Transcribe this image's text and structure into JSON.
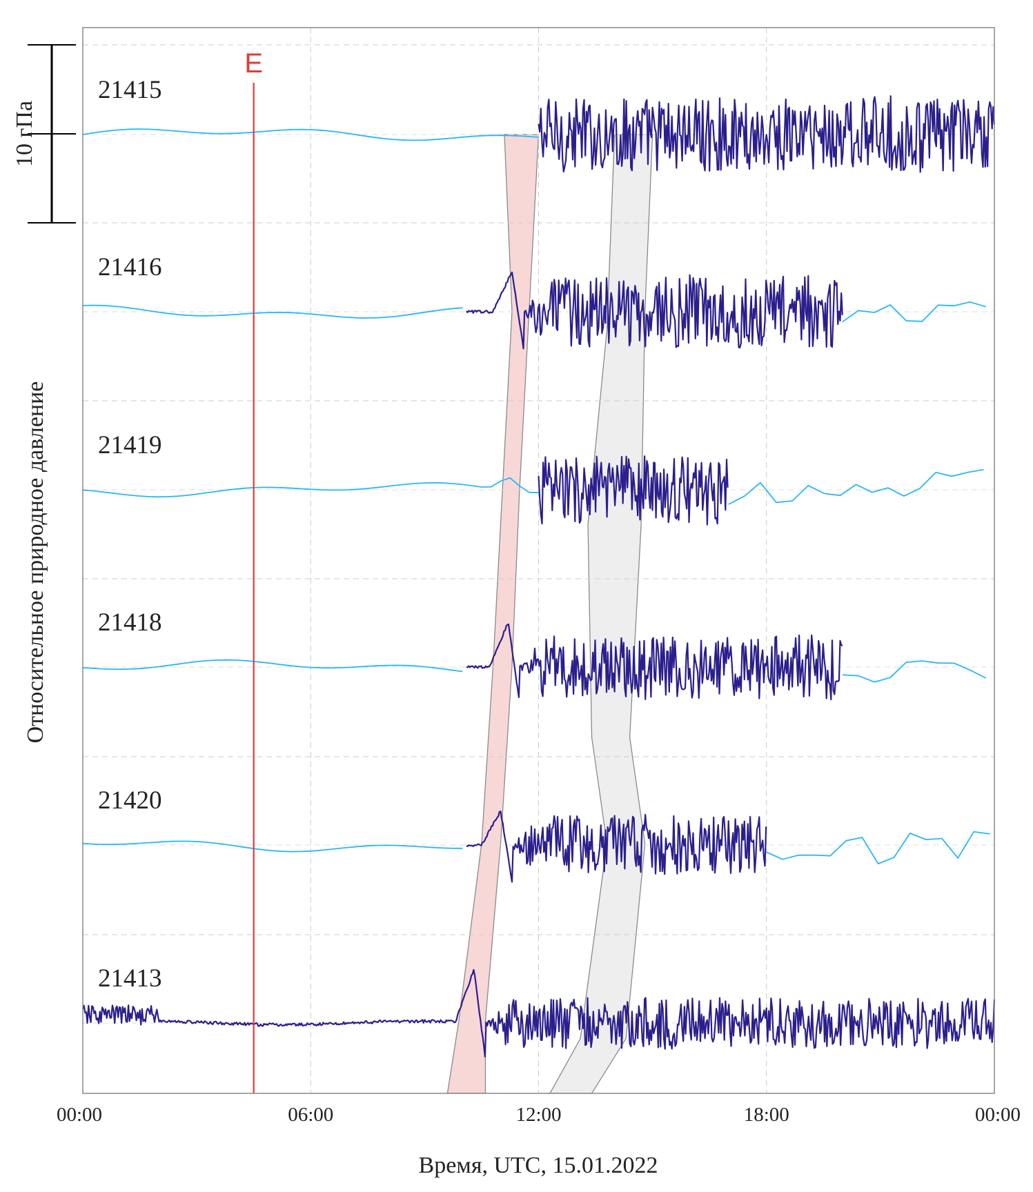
{
  "chart_data": {
    "type": "line",
    "title": "",
    "xlabel": "Время, UTC, 15.01.2022",
    "ylabel": "Относительное природное давление",
    "x_unit": "hours",
    "xlim": [
      0,
      24
    ],
    "x_ticks": [
      {
        "value": 0,
        "label": "00:00"
      },
      {
        "value": 6,
        "label": "06:00"
      },
      {
        "value": 12,
        "label": "12:00"
      },
      {
        "value": 18,
        "label": "18:00"
      },
      {
        "value": 24,
        "label": "00:00"
      }
    ],
    "scale_bar": {
      "label": "10 гПа",
      "value": 10
    },
    "event": {
      "label": "E",
      "x": 4.5,
      "color": "#e53935"
    },
    "grid": true,
    "colors": {
      "low_rate": "#29b6f6",
      "high_rate": "#2a1f8c",
      "band_red": "#f8d7d7",
      "band_gray": "#eeeeee"
    },
    "series": [
      {
        "name": "21415",
        "hi_start": 12.0,
        "hi_end": 24.0,
        "amp_hi": 4.2
      },
      {
        "name": "21416",
        "hi_start": 10.1,
        "hi_end": 20.0,
        "amp_hi": 4.0,
        "spike_t": 11.3,
        "spike_amp": 4.5
      },
      {
        "name": "21419",
        "hi_start": 12.0,
        "hi_end": 17.0,
        "amp_hi": 3.8,
        "bump_t": 11.2
      },
      {
        "name": "21418",
        "hi_start": 10.1,
        "hi_end": 20.0,
        "amp_hi": 3.5,
        "spike_t": 11.2,
        "spike_amp": 5.0
      },
      {
        "name": "21420",
        "hi_start": 10.1,
        "hi_end": 18.0,
        "amp_hi": 3.3,
        "spike_t": 11.0,
        "spike_amp": 3.8
      },
      {
        "name": "21413",
        "hi_start": 0.0,
        "hi_end": 24.0,
        "amp_hi": 2.8,
        "spike_t": 10.3,
        "spike_amp": 6.0
      }
    ],
    "bands": [
      {
        "name": "red-band",
        "color": "#f8d7d7",
        "left": [
          [
            11.1,
            0
          ],
          [
            11.3,
            1
          ],
          [
            10.8,
            3
          ],
          [
            10.5,
            4
          ],
          [
            9.9,
            5
          ],
          [
            9.6,
            5.6
          ]
        ],
        "right": [
          [
            12.0,
            0
          ],
          [
            11.5,
            2
          ],
          [
            11.3,
            3
          ],
          [
            11.0,
            4
          ],
          [
            10.6,
            5
          ],
          [
            10.6,
            5.6
          ]
        ]
      },
      {
        "name": "gray-band",
        "color": "#eeeeee",
        "left": [
          [
            14.0,
            0
          ],
          [
            13.8,
            1.1
          ],
          [
            13.3,
            2.2
          ],
          [
            13.4,
            3.4
          ],
          [
            13.8,
            4.0
          ],
          [
            13.1,
            5.1
          ],
          [
            12.3,
            5.5
          ],
          [
            12.2,
            5.9
          ]
        ],
        "right": [
          [
            15.0,
            0
          ],
          [
            14.8,
            1.0
          ],
          [
            14.7,
            2.2
          ],
          [
            14.4,
            3.4
          ],
          [
            14.8,
            4.0
          ],
          [
            14.3,
            5.1
          ],
          [
            13.4,
            5.5
          ],
          [
            13.4,
            5.9
          ]
        ]
      }
    ]
  }
}
